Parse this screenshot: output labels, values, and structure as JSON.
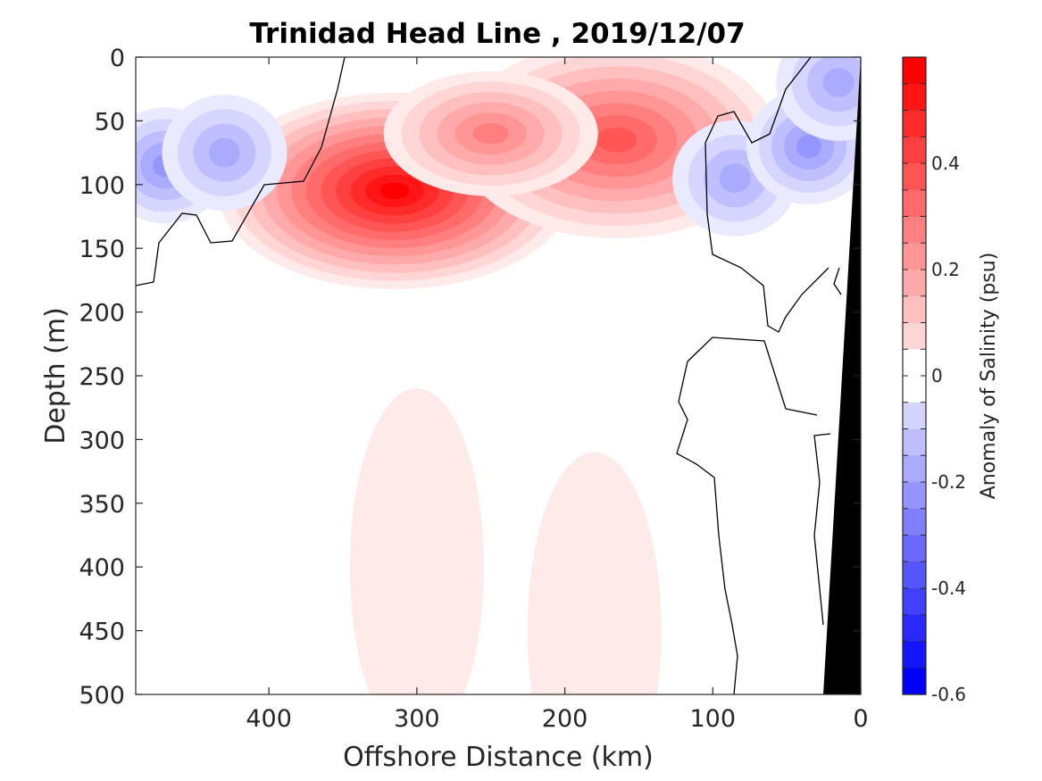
{
  "chart_data": {
    "type": "heatmap",
    "title": "Trinidad Head Line , 2019/12/07",
    "xlabel": "Offshore Distance (km)",
    "ylabel": "Depth (m)",
    "xlim": [
      490,
      0
    ],
    "ylim": [
      0,
      500
    ],
    "x_ticks": [
      "400",
      "300",
      "200",
      "100",
      "0"
    ],
    "x_tick_values": [
      400,
      300,
      200,
      100,
      0
    ],
    "y_ticks": [
      "0",
      "50",
      "100",
      "150",
      "200",
      "250",
      "300",
      "350",
      "400",
      "450",
      "500"
    ],
    "y_tick_values": [
      0,
      50,
      100,
      150,
      200,
      250,
      300,
      350,
      400,
      450,
      500
    ],
    "colorbar": {
      "label": "Anomaly of Salinity (psu)",
      "range": [
        -0.6,
        0.6
      ],
      "step": 0.05,
      "tick_labels": [
        "0.4",
        "0.2",
        "0",
        "-0.2",
        "-0.4",
        "-0.6"
      ],
      "tick_values": [
        0.4,
        0.2,
        0.0,
        -0.2,
        -0.4,
        -0.6
      ],
      "negative_color": "#0000ff",
      "positive_color": "#ff0000",
      "neutral_color": "#ffffff"
    },
    "bathymetry_color": "#000000",
    "features": [
      {
        "kind": "positive",
        "x": 315,
        "y": 105,
        "peak": 0.6
      },
      {
        "kind": "positive",
        "x": 165,
        "y": 65,
        "peak": 0.38
      },
      {
        "kind": "positive",
        "x": 250,
        "y": 60,
        "peak": 0.28
      },
      {
        "kind": "negative",
        "x": 470,
        "y": 85,
        "peak": -0.25
      },
      {
        "kind": "negative",
        "x": 430,
        "y": 75,
        "peak": -0.22
      },
      {
        "kind": "negative",
        "x": 85,
        "y": 95,
        "peak": -0.2
      },
      {
        "kind": "negative",
        "x": 35,
        "y": 70,
        "peak": -0.25
      },
      {
        "kind": "negative",
        "x": 15,
        "y": 20,
        "peak": -0.18
      },
      {
        "kind": "positive",
        "x": 300,
        "y": 400,
        "peak": 0.06
      },
      {
        "kind": "positive",
        "x": 180,
        "y": 450,
        "peak": 0.06
      }
    ]
  }
}
